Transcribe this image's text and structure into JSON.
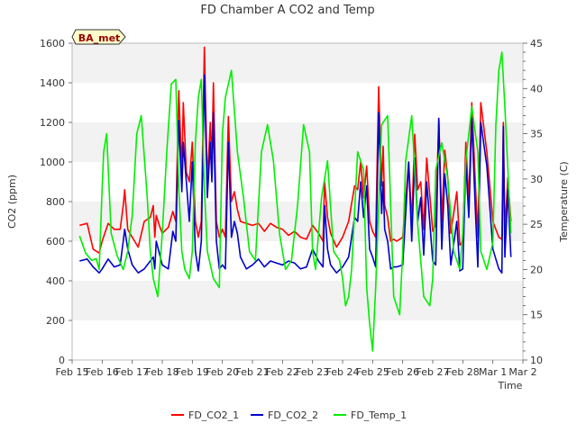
{
  "chart_data": {
    "type": "line",
    "title": "FD Chamber A CO2 and Temp",
    "xlabel": "Time",
    "ylabel": "CO2 (ppm)",
    "ylabel_right": "Temperature (C)",
    "badge": "BA_met",
    "x_ticks": [
      "Feb 15",
      "Feb 16",
      "Feb 17",
      "Feb 18",
      "Feb 19",
      "Feb 20",
      "Feb 21",
      "Feb 22",
      "Feb 23",
      "Feb 24",
      "Feb 25",
      "Feb 26",
      "Feb 27",
      "Feb 28",
      "Mar 1",
      "Mar 2"
    ],
    "xlim": [
      0,
      15
    ],
    "ylim": [
      0,
      1600
    ],
    "ylim_right": [
      10,
      45
    ],
    "y_ticks": [
      0,
      200,
      400,
      600,
      800,
      1000,
      1200,
      1400,
      1600
    ],
    "y_ticks_right": [
      10,
      15,
      20,
      25,
      30,
      35,
      40,
      45
    ],
    "grid": "horizontal bands",
    "legend_position": "bottom-center",
    "series": [
      {
        "name": "FD_CO2_1",
        "color": "#ff0000",
        "axis": "left",
        "x": [
          0.25,
          0.5,
          0.7,
          0.9,
          1.0,
          1.2,
          1.4,
          1.6,
          1.7,
          1.75,
          1.85,
          2.0,
          2.2,
          2.4,
          2.6,
          2.7,
          2.75,
          2.8,
          2.9,
          3.0,
          3.2,
          3.35,
          3.45,
          3.55,
          3.65,
          3.7,
          3.8,
          3.9,
          4.0,
          4.1,
          4.2,
          4.3,
          4.4,
          4.5,
          4.6,
          4.65,
          4.7,
          4.8,
          4.9,
          5.0,
          5.1,
          5.2,
          5.3,
          5.4,
          5.5,
          5.6,
          5.8,
          6.0,
          6.2,
          6.4,
          6.6,
          6.8,
          7.0,
          7.2,
          7.4,
          7.6,
          7.8,
          8.0,
          8.2,
          8.35,
          8.4,
          8.5,
          8.6,
          8.8,
          9.0,
          9.2,
          9.4,
          9.5,
          9.6,
          9.7,
          9.8,
          9.9,
          10.0,
          10.1,
          10.2,
          10.3,
          10.35,
          10.4,
          10.5,
          10.6,
          10.7,
          10.8,
          11.0,
          11.2,
          11.3,
          11.4,
          11.5,
          11.6,
          11.7,
          11.8,
          12.0,
          12.1,
          12.2,
          12.3,
          12.4,
          12.5,
          12.6,
          12.8,
          12.9,
          13.0,
          13.1,
          13.2,
          13.3,
          13.4,
          13.5,
          13.6,
          13.8,
          14.0,
          14.2,
          14.3,
          14.35,
          14.4,
          14.5,
          14.6
        ],
        "y": [
          680,
          690,
          560,
          540,
          600,
          690,
          660,
          660,
          780,
          860,
          660,
          620,
          570,
          700,
          720,
          780,
          620,
          730,
          680,
          640,
          670,
          750,
          700,
          1360,
          950,
          1300,
          950,
          900,
          1100,
          700,
          620,
          700,
          1580,
          900,
          1200,
          1000,
          1400,
          700,
          620,
          660,
          620,
          1230,
          800,
          850,
          760,
          700,
          690,
          680,
          690,
          650,
          690,
          670,
          660,
          630,
          650,
          620,
          610,
          680,
          640,
          600,
          900,
          720,
          640,
          570,
          620,
          700,
          880,
          860,
          1000,
          820,
          980,
          700,
          650,
          620,
          1380,
          880,
          1080,
          780,
          720,
          600,
          610,
          600,
          620,
          1000,
          700,
          1140,
          860,
          900,
          660,
          1020,
          650,
          680,
          1220,
          700,
          1060,
          920,
          640,
          850,
          580,
          600,
          1100,
          800,
          1300,
          950,
          620,
          1300,
          1050,
          700,
          620,
          610,
          1200,
          650,
          920,
          700
        ],
        "cls": "s1"
      },
      {
        "name": "FD_CO2_2",
        "color": "#0000cc",
        "axis": "left",
        "x": [
          0.25,
          0.5,
          0.7,
          0.9,
          1.0,
          1.2,
          1.4,
          1.6,
          1.7,
          1.75,
          1.85,
          2.0,
          2.2,
          2.4,
          2.6,
          2.7,
          2.75,
          2.8,
          2.9,
          3.0,
          3.2,
          3.35,
          3.45,
          3.55,
          3.65,
          3.7,
          3.8,
          3.9,
          4.0,
          4.1,
          4.2,
          4.3,
          4.4,
          4.5,
          4.6,
          4.65,
          4.7,
          4.8,
          4.9,
          5.0,
          5.1,
          5.2,
          5.3,
          5.4,
          5.5,
          5.6,
          5.8,
          6.0,
          6.2,
          6.4,
          6.6,
          6.8,
          7.0,
          7.2,
          7.4,
          7.6,
          7.8,
          8.0,
          8.2,
          8.35,
          8.4,
          8.5,
          8.6,
          8.8,
          9.0,
          9.2,
          9.4,
          9.5,
          9.6,
          9.7,
          9.8,
          9.9,
          10.0,
          10.1,
          10.2,
          10.3,
          10.35,
          10.4,
          10.5,
          10.6,
          10.7,
          10.8,
          11.0,
          11.2,
          11.3,
          11.4,
          11.5,
          11.6,
          11.7,
          11.8,
          12.0,
          12.1,
          12.2,
          12.3,
          12.4,
          12.5,
          12.6,
          12.8,
          12.9,
          13.0,
          13.1,
          13.2,
          13.3,
          13.4,
          13.5,
          13.6,
          13.8,
          14.0,
          14.2,
          14.3,
          14.35,
          14.4,
          14.5,
          14.6
        ],
        "y": [
          500,
          510,
          470,
          440,
          460,
          510,
          470,
          480,
          600,
          660,
          560,
          480,
          440,
          460,
          500,
          520,
          460,
          600,
          540,
          480,
          460,
          650,
          600,
          1210,
          850,
          1100,
          900,
          700,
          1000,
          550,
          450,
          600,
          1440,
          820,
          1100,
          900,
          1250,
          600,
          460,
          480,
          460,
          1100,
          620,
          700,
          640,
          520,
          460,
          480,
          510,
          470,
          500,
          490,
          480,
          500,
          490,
          460,
          470,
          560,
          500,
          470,
          780,
          560,
          480,
          440,
          470,
          520,
          720,
          700,
          900,
          720,
          880,
          560,
          520,
          470,
          1250,
          740,
          900,
          660,
          600,
          460,
          470,
          470,
          480,
          1000,
          600,
          1020,
          700,
          820,
          530,
          900,
          500,
          480,
          1220,
          560,
          940,
          780,
          480,
          700,
          450,
          460,
          1000,
          720,
          1220,
          820,
          470,
          1200,
          980,
          560,
          460,
          440,
          1180,
          520,
          860,
          520
        ],
        "cls": "s2"
      },
      {
        "name": "FD_Temp_1",
        "color": "#00ee00",
        "axis": "right",
        "x": [
          0.25,
          0.45,
          0.65,
          0.8,
          0.9,
          1.0,
          1.05,
          1.15,
          1.3,
          1.5,
          1.7,
          1.85,
          2.0,
          2.15,
          2.3,
          2.5,
          2.6,
          2.7,
          2.85,
          3.0,
          3.15,
          3.3,
          3.45,
          3.55,
          3.65,
          3.75,
          3.9,
          4.0,
          4.1,
          4.2,
          4.3,
          4.4,
          4.5,
          4.7,
          4.9,
          5.0,
          5.1,
          5.3,
          5.5,
          5.7,
          5.9,
          6.1,
          6.3,
          6.5,
          6.7,
          6.9,
          7.1,
          7.3,
          7.5,
          7.7,
          7.9,
          8.0,
          8.1,
          8.3,
          8.5,
          8.7,
          8.9,
          9.0,
          9.1,
          9.2,
          9.3,
          9.5,
          9.7,
          9.8,
          9.9,
          10.0,
          10.1,
          10.3,
          10.5,
          10.7,
          10.9,
          11.0,
          11.1,
          11.3,
          11.5,
          11.7,
          11.9,
          12.0,
          12.1,
          12.3,
          12.5,
          12.7,
          12.9,
          13.0,
          13.1,
          13.3,
          13.5,
          13.6,
          13.8,
          14.0,
          14.1,
          14.2,
          14.3,
          14.4,
          14.6
        ],
        "y": [
          23.7,
          21.8,
          21.0,
          21.2,
          20.0,
          29.0,
          33.0,
          35.0,
          24.0,
          21.5,
          20.0,
          22.0,
          26.0,
          35.0,
          37.0,
          28.0,
          22.0,
          19.0,
          17.0,
          24.0,
          33.0,
          40.5,
          41.0,
          29.0,
          22.0,
          20.0,
          19.0,
          22.0,
          34.0,
          39.0,
          41.0,
          29.0,
          22.0,
          19.0,
          18.0,
          35.0,
          39.0,
          42.0,
          33.0,
          28.0,
          22.0,
          21.0,
          33.0,
          36.0,
          32.0,
          24.0,
          20.0,
          21.0,
          27.0,
          36.0,
          33.0,
          22.0,
          20.0,
          28.0,
          32.0,
          22.0,
          21.0,
          19.0,
          16.0,
          17.0,
          20.0,
          33.0,
          31.0,
          18.0,
          14.0,
          11.0,
          18.0,
          36.0,
          37.0,
          17.0,
          15.0,
          22.0,
          32.0,
          37.0,
          25.0,
          17.0,
          16.0,
          19.0,
          31.0,
          34.0,
          30.0,
          22.0,
          20.0,
          24.0,
          32.0,
          38.0,
          33.0,
          22.0,
          20.0,
          23.0,
          36.0,
          42.0,
          44.0,
          38.0,
          24.0
        ],
        "cls": "s3"
      }
    ]
  }
}
